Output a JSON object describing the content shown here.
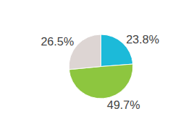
{
  "chart_data": {
    "type": "pie",
    "values": [
      23.8,
      49.7,
      26.5
    ],
    "value_labels": [
      "23.8%",
      "49.7%",
      "26.5%"
    ],
    "colors": [
      "#1cbad9",
      "#8dc63f",
      "#ddd5d3"
    ],
    "data_labels": true
  }
}
